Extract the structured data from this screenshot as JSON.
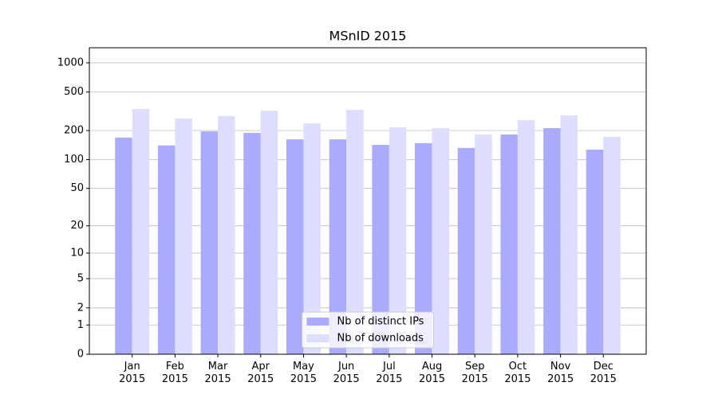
{
  "chart_data": {
    "type": "bar",
    "title": "MSnID 2015",
    "yscale": "log1p",
    "categories": [
      "Jan\n2015",
      "Feb\n2015",
      "Mar\n2015",
      "Apr\n2015",
      "May\n2015",
      "Jun\n2015",
      "Jul\n2015",
      "Aug\n2015",
      "Sep\n2015",
      "Oct\n2015",
      "Nov\n2015",
      "Dec\n2015"
    ],
    "series": [
      {
        "name": "Nb of distinct IPs",
        "color": "#aaaaff",
        "values": [
          169,
          140,
          196,
          189,
          162,
          162,
          142,
          148,
          132,
          182,
          212,
          127
        ]
      },
      {
        "name": "Nb of downloads",
        "color": "#ddddff",
        "values": [
          334,
          266,
          282,
          321,
          237,
          327,
          216,
          212,
          182,
          256,
          287,
          172
        ]
      }
    ],
    "ylim": [
      0,
      1430
    ],
    "yticks": [
      0,
      1,
      2,
      5,
      10,
      20,
      50,
      100,
      200,
      500,
      1000
    ],
    "grid": true,
    "legend": "lower center"
  }
}
